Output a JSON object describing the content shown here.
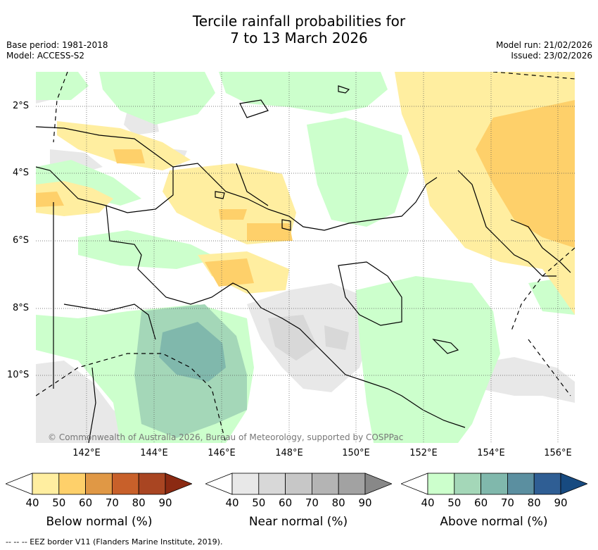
{
  "title": {
    "line1": "Tercile rainfall probabilities for",
    "line2": "7 to 13 March 2026"
  },
  "meta": {
    "base_period": "Base period: 1981-2018",
    "model": "Model: ACCESS-S2",
    "model_run": "Model run: 21/02/2026",
    "issued": "Issued: 23/02/2026"
  },
  "map": {
    "lat_labels": [
      "2°S",
      "4°S",
      "6°S",
      "8°S",
      "10°S"
    ],
    "lon_labels": [
      "142°E",
      "144°E",
      "146°E",
      "148°E",
      "150°E",
      "152°E",
      "154°E",
      "156°E"
    ],
    "copyright": "© Commonwealth of Australia 2026, Bureau of Meteorology, supported by COSPPac"
  },
  "legend": {
    "below": {
      "title": "Below normal (%)",
      "ticks": [
        "40",
        "50",
        "60",
        "70",
        "80",
        "90"
      ],
      "colors": [
        "#ffeea0",
        "#fed06a",
        "#e09845",
        "#c8602a",
        "#a94522",
        "#8b2a12"
      ]
    },
    "near": {
      "title": "Near normal (%)",
      "ticks": [
        "40",
        "50",
        "60",
        "70",
        "80",
        "90"
      ],
      "colors": [
        "#e8e8e8",
        "#d8d8d8",
        "#c7c7c7",
        "#b4b4b4",
        "#a2a2a2",
        "#888888"
      ]
    },
    "above": {
      "title": "Above normal (%)",
      "ticks": [
        "40",
        "50",
        "60",
        "70",
        "80",
        "90"
      ],
      "colors": [
        "#ccffcc",
        "#a4d7b8",
        "#80b8ac",
        "#5b8fa0",
        "#2f5e94",
        "#174a80"
      ]
    }
  },
  "footnote": "--  --  -- EEZ border V11 (Flanders Marine Institute, 2019)."
}
